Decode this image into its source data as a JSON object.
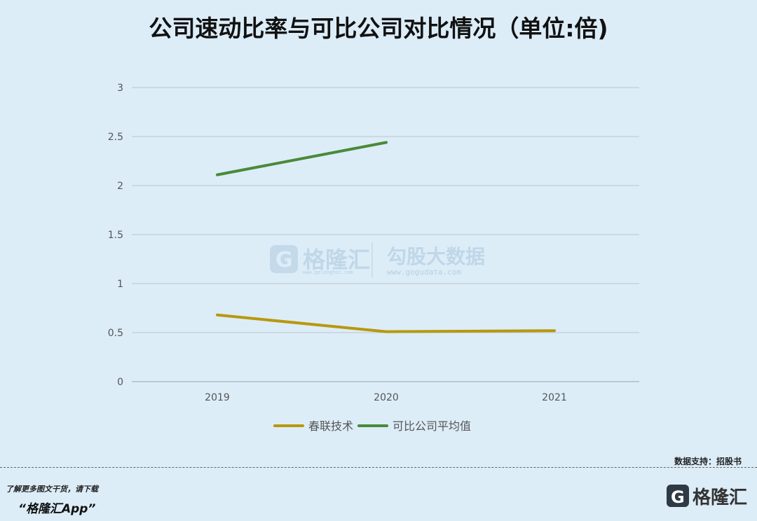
{
  "title": "公司速动比率与可比公司对比情况（单位:倍)",
  "watermark": {
    "brand1": "格隆汇",
    "brand1_url": "www.gelonghui.com",
    "brand2": "勾股大数据",
    "brand2_url": "www.gogudata.com"
  },
  "footer": {
    "source": "数据支持：招股书",
    "promo_line1": "了解更多图文干货，请下载",
    "promo_line2": "“格隆汇App”",
    "brand": "格隆汇"
  },
  "chart_data": {
    "type": "line",
    "categories": [
      "2019",
      "2020",
      "2021"
    ],
    "ylim": [
      0,
      3
    ],
    "yticks": [
      "0",
      "0.5",
      "1",
      "1.5",
      "2",
      "2.5",
      "3"
    ],
    "grid": true,
    "legend_position": "bottom",
    "series": [
      {
        "name": "春联技术",
        "color": "#b8980d",
        "values": [
          0.68,
          0.51,
          0.52
        ]
      },
      {
        "name": "可比公司平均值",
        "color": "#4a8a38",
        "values": [
          2.11,
          2.44,
          null
        ]
      }
    ]
  }
}
